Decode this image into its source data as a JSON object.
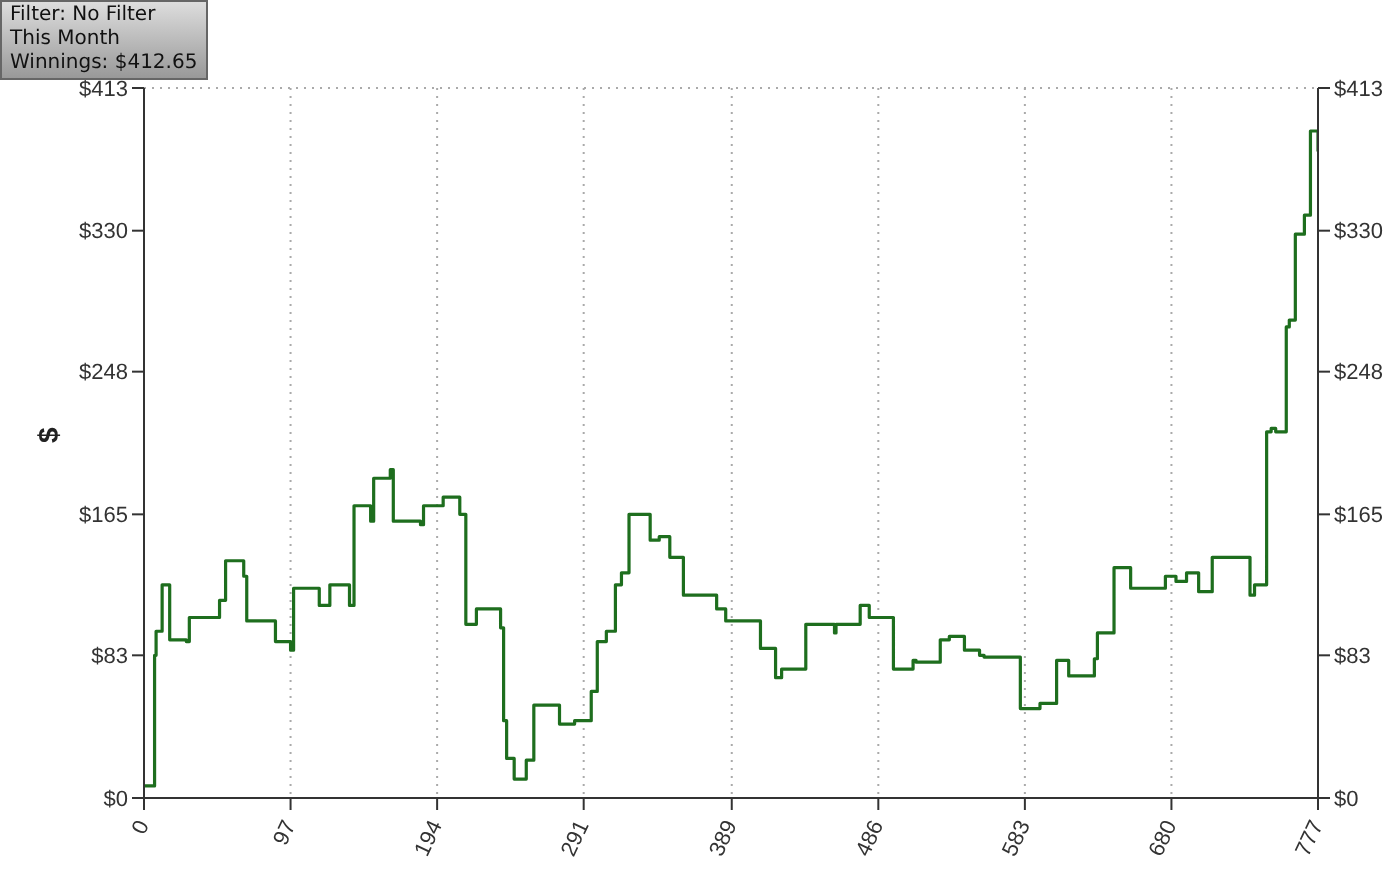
{
  "chart_data": {
    "type": "step",
    "ylabel": "$",
    "annotations": [
      "Filter: No Filter",
      "This Month",
      "Winnings: $412.65"
    ],
    "x": [
      0,
      7,
      8,
      12,
      17,
      28,
      30,
      50,
      54,
      66,
      68,
      87,
      97,
      99,
      116,
      123,
      136,
      139,
      150,
      152,
      163,
      165,
      183,
      185,
      198,
      209,
      213,
      220,
      236,
      238,
      240,
      245,
      253,
      258,
      275,
      285,
      296,
      300,
      306,
      312,
      316,
      321,
      335,
      341,
      348,
      357,
      379,
      385,
      408,
      418,
      422,
      438,
      457,
      458,
      474,
      480,
      496,
      509,
      511,
      527,
      533,
      543,
      553,
      556,
      580,
      593,
      604,
      612,
      629,
      631,
      642,
      653,
      676,
      683,
      690,
      698,
      707,
      732,
      735,
      743,
      746,
      749,
      756,
      758,
      762,
      768,
      772,
      777
    ],
    "series": [
      {
        "color": "#1e6e1e",
        "values": [
          7,
          83,
          97,
          124,
          92,
          91,
          105,
          115,
          138,
          129,
          103,
          91,
          86,
          122,
          112,
          124,
          112,
          170,
          161,
          186,
          191,
          161,
          159,
          170,
          175,
          165,
          101,
          110,
          99,
          45,
          23,
          11,
          22,
          54,
          43,
          45,
          62,
          91,
          97,
          124,
          131,
          165,
          150,
          152,
          140,
          118,
          110,
          103,
          87,
          70,
          75,
          101,
          96,
          101,
          112,
          105,
          75,
          80,
          79,
          92,
          94,
          86,
          83,
          82,
          52,
          55,
          80,
          71,
          81,
          96,
          134,
          122,
          129,
          126,
          131,
          120,
          140,
          118,
          124,
          213,
          215,
          213,
          274,
          278,
          328,
          339,
          388,
          376
        ]
      }
    ],
    "xlim": [
      0,
      777
    ],
    "xticks": [
      0,
      97,
      194,
      291,
      389,
      486,
      583,
      680,
      777
    ],
    "ylim": [
      0,
      413
    ],
    "yticks": [
      {
        "value": 0,
        "label": "$0"
      },
      {
        "value": 83,
        "label": "$83"
      },
      {
        "value": 165,
        "label": "$165"
      },
      {
        "value": 248,
        "label": "$248"
      },
      {
        "value": 330,
        "label": "$330"
      },
      {
        "value": 413,
        "label": "$413"
      }
    ],
    "y2lim": [
      0,
      413
    ],
    "y2ticks": [
      {
        "value": 0,
        "label": "$0"
      },
      {
        "value": 83,
        "label": "$83"
      },
      {
        "value": 165,
        "label": "$165"
      },
      {
        "value": 248,
        "label": "$248"
      },
      {
        "value": 330,
        "label": "$330"
      },
      {
        "value": 413,
        "label": "$413"
      }
    ],
    "grid": true,
    "marker": "none",
    "line_style": "solid",
    "legend": false
  }
}
